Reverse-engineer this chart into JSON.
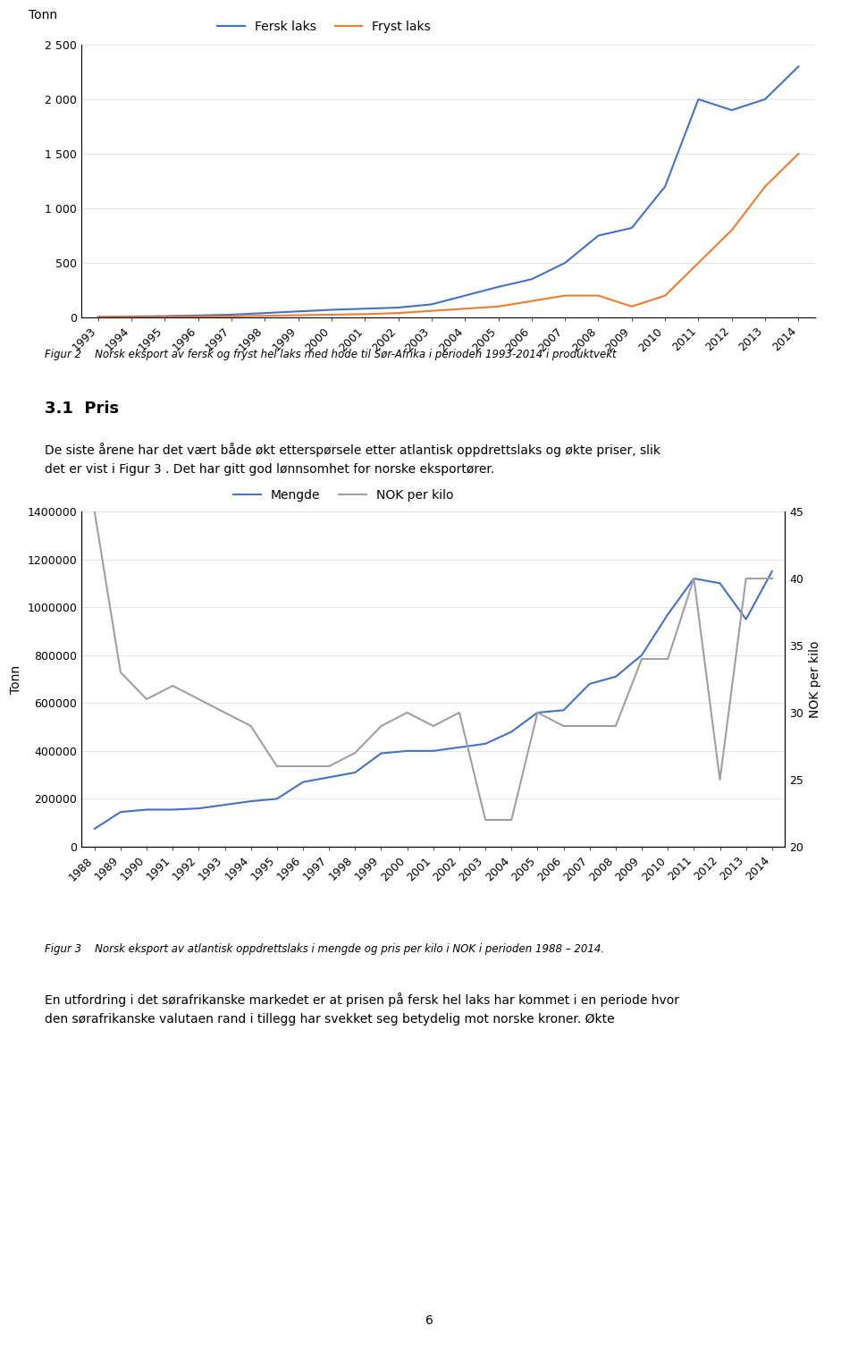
{
  "chart1": {
    "years": [
      1993,
      1994,
      1995,
      1996,
      1997,
      1998,
      1999,
      2000,
      2001,
      2002,
      2003,
      2004,
      2005,
      2006,
      2007,
      2008,
      2009,
      2010,
      2011,
      2012,
      2013,
      2014
    ],
    "fersk_laks": [
      5,
      8,
      12,
      18,
      25,
      40,
      55,
      70,
      80,
      90,
      120,
      200,
      280,
      350,
      500,
      750,
      820,
      1200,
      2000,
      1900,
      2000,
      2300
    ],
    "fryst_laks": [
      2,
      3,
      5,
      8,
      10,
      15,
      20,
      25,
      30,
      40,
      60,
      80,
      100,
      150,
      200,
      200,
      100,
      200,
      500,
      800,
      1200,
      1500
    ],
    "fersk_color": "#4472C4",
    "fryst_color": "#ED7D31",
    "ylabel": "Tonn",
    "ylim": [
      0,
      2500
    ],
    "yticks": [
      0,
      500,
      1000,
      1500,
      2000,
      2500
    ],
    "ytick_labels": [
      "0",
      "500",
      "1 000",
      "1 500",
      "2 000",
      "2 500"
    ],
    "legend_fersk": "Fersk laks",
    "legend_fryst": "Fryst laks",
    "figcaption_label": "Figur 2",
    "figcaption_text": "Norsk eksport av fersk og fryst hel laks med hode til Sør-Afrika i perioden 1993-2014 i produktvekt"
  },
  "text_section": {
    "heading": "3.1  Pris",
    "body": "De siste årene har det vært både økt etterspørsele etter atlantisk oppdrettslaks og økte priser, slik det er vist i Figur 3 . Det har gitt god lønnsomhet for norske eksportører."
  },
  "chart2": {
    "years": [
      1988,
      1989,
      1990,
      1991,
      1992,
      1993,
      1994,
      1995,
      1996,
      1997,
      1998,
      1999,
      2000,
      2001,
      2002,
      2003,
      2004,
      2005,
      2006,
      2007,
      2008,
      2009,
      2010,
      2011,
      2012,
      2013,
      2014
    ],
    "mengde": [
      75000,
      145000,
      155000,
      155000,
      160000,
      175000,
      190000,
      200000,
      270000,
      290000,
      310000,
      390000,
      400000,
      400000,
      415000,
      430000,
      480000,
      560000,
      570000,
      680000,
      710000,
      800000,
      970000,
      1120000,
      1100000,
      950000,
      1150000
    ],
    "nok_per_kilo": [
      45,
      33,
      31,
      32,
      31,
      30,
      29,
      26,
      26,
      26,
      27,
      29,
      30,
      29,
      30,
      22,
      22,
      30,
      29,
      29,
      29,
      34,
      34,
      40,
      25,
      40,
      40
    ],
    "mengde_color": "#4472C4",
    "nok_color": "#A0A0A0",
    "left_ylabel": "Tonn",
    "right_ylabel": "NOK per kilo",
    "left_ylim": [
      0,
      1400000
    ],
    "right_ylim": [
      20,
      45
    ],
    "left_yticks": [
      0,
      200000,
      400000,
      600000,
      800000,
      1000000,
      1200000,
      1400000
    ],
    "left_ytick_labels": [
      "0",
      "200000",
      "400000",
      "600000",
      "800000",
      "1000000",
      "1200000",
      "1400000"
    ],
    "right_yticks": [
      20,
      25,
      30,
      35,
      40,
      45
    ],
    "right_ytick_labels": [
      "20",
      "25",
      "30",
      "35",
      "40",
      "45"
    ],
    "legend_mengde": "Mengde",
    "legend_nok": "NOK per kilo",
    "figcaption_label": "Figur 3",
    "figcaption_text": "Norsk eksport av atlantisk oppdrettslaks i mengde og pris per kilo i NOK i perioden 1988 – 2014."
  },
  "footer_text": "En utfordring i det sørafrikanske markedet er at prisen på fersk hel laks har kommet i en periode hvor\nden sørafrikanske valutaen rand i tillegg har svekket seg betydelig mot norske kroner. Økte",
  "page_number": "6",
  "background_color": "#ffffff"
}
